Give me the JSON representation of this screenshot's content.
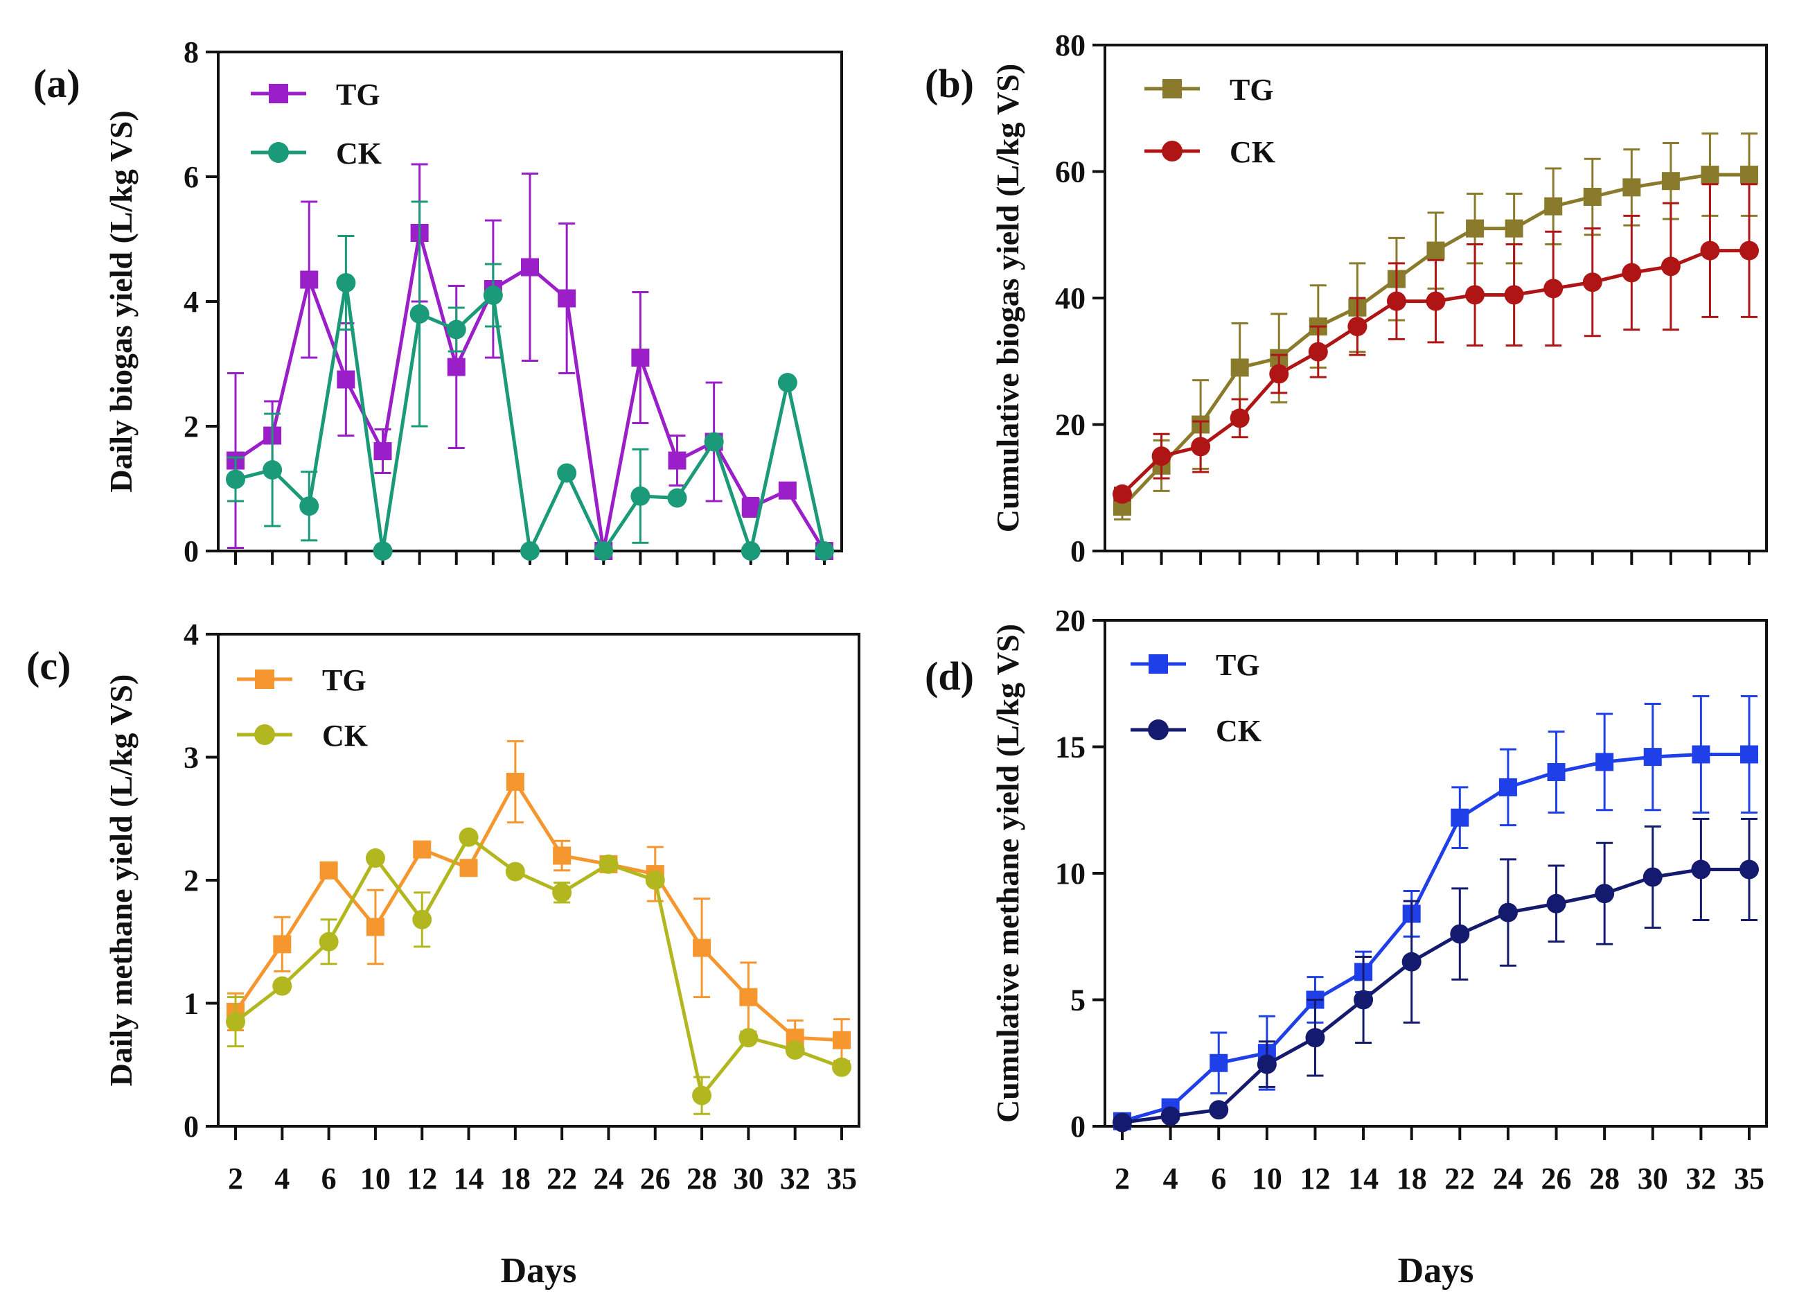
{
  "chart_data": [
    {
      "panel": "(a)",
      "type": "line",
      "ylabel": "Daily biogas yield (L/kg VS)",
      "xlabel": "",
      "ylim": [
        0,
        8
      ],
      "yticks": [
        0,
        2,
        4,
        6,
        8
      ],
      "x": [
        2,
        3,
        4,
        5,
        6,
        7,
        8,
        9,
        10,
        11,
        12,
        13,
        14,
        15,
        16,
        17,
        18
      ],
      "xtick_labels": [],
      "series": [
        {
          "name": "TG",
          "marker": "square",
          "color": "#9b1fc8",
          "values": [
            1.45,
            1.85,
            4.35,
            2.75,
            1.6,
            5.1,
            2.95,
            4.2,
            4.55,
            4.05,
            0.0,
            3.1,
            1.45,
            1.75,
            0.7,
            0.97,
            0.0
          ],
          "err": [
            1.4,
            0.55,
            1.25,
            0.9,
            0.35,
            1.1,
            1.3,
            1.1,
            1.5,
            1.2,
            0.0,
            1.05,
            0.4,
            0.95,
            0.15,
            0.1,
            0.0
          ]
        },
        {
          "name": "CK",
          "marker": "circle",
          "color": "#1a9a78",
          "values": [
            1.15,
            1.3,
            0.72,
            4.3,
            0.0,
            3.8,
            3.55,
            4.1,
            0.0,
            1.25,
            0.0,
            0.88,
            0.85,
            1.75,
            0.0,
            2.7,
            0.0
          ],
          "err": [
            0.35,
            0.9,
            0.55,
            0.75,
            0.0,
            1.8,
            0.35,
            0.5,
            0.0,
            0.0,
            0.0,
            0.75,
            0.0,
            0.0,
            0.0,
            0.0,
            0.0
          ]
        }
      ]
    },
    {
      "panel": "(b)",
      "type": "line",
      "ylabel": "Cumulative biogas yield (L/kg VS)",
      "xlabel": "",
      "ylim": [
        0,
        80
      ],
      "yticks": [
        0,
        20,
        40,
        60,
        80
      ],
      "x": [
        2,
        3,
        4,
        5,
        6,
        7,
        8,
        9,
        10,
        11,
        12,
        13,
        14,
        15,
        16,
        17,
        18
      ],
      "xtick_labels": [],
      "series": [
        {
          "name": "TG",
          "marker": "square",
          "color": "#8a7b2c",
          "values": [
            7,
            13.5,
            20,
            29,
            30.5,
            35.5,
            38.5,
            43,
            47.5,
            51,
            51,
            54.5,
            56,
            57.5,
            58.5,
            59.5,
            59.5
          ],
          "err": [
            2,
            4,
            7,
            7,
            7,
            6.5,
            7,
            6.5,
            6,
            5.5,
            5.5,
            6,
            6,
            6,
            6,
            6.5,
            6.5
          ]
        },
        {
          "name": "CK",
          "marker": "circle",
          "color": "#b01515",
          "values": [
            9,
            15,
            16.5,
            21,
            28,
            31.5,
            35.5,
            39.5,
            39.5,
            40.5,
            40.5,
            41.5,
            42.5,
            44,
            45,
            47.5,
            47.5
          ],
          "err": [
            1,
            3.5,
            4,
            3,
            3,
            4,
            4.5,
            6,
            6.5,
            8,
            8,
            9,
            8.5,
            9,
            10,
            10.5,
            10.5
          ]
        }
      ]
    },
    {
      "panel": "(c)",
      "type": "line",
      "ylabel": "Daily methane yield (L/kg VS)",
      "xlabel": "Days",
      "ylim": [
        0,
        4
      ],
      "yticks": [
        0,
        1,
        2,
        3,
        4
      ],
      "x": [
        2,
        4,
        6,
        10,
        12,
        14,
        18,
        22,
        24,
        26,
        28,
        30,
        32,
        35
      ],
      "xtick_labels": [
        "2",
        "4",
        "6",
        "10",
        "12",
        "14",
        "18",
        "22",
        "24",
        "26",
        "28",
        "30",
        "32",
        "35"
      ],
      "series": [
        {
          "name": "TG",
          "marker": "square",
          "color": "#f5962e",
          "values": [
            0.93,
            1.48,
            2.08,
            1.62,
            2.25,
            2.1,
            2.8,
            2.2,
            2.13,
            2.05,
            1.45,
            1.05,
            0.72,
            0.7
          ],
          "err": [
            0.15,
            0.22,
            0.0,
            0.3,
            0.0,
            0.0,
            0.33,
            0.12,
            0.0,
            0.22,
            0.4,
            0.28,
            0.14,
            0.17
          ]
        },
        {
          "name": "CK",
          "marker": "circle",
          "color": "#b3b71f",
          "values": [
            0.85,
            1.14,
            1.5,
            2.18,
            1.68,
            2.35,
            2.07,
            1.9,
            2.13,
            2.0,
            0.25,
            0.72,
            0.62,
            0.48
          ],
          "err": [
            0.2,
            0.0,
            0.18,
            0.0,
            0.22,
            0.0,
            0.0,
            0.08,
            0.0,
            0.0,
            0.15,
            0.0,
            0.0,
            0.0
          ]
        }
      ]
    },
    {
      "panel": "(d)",
      "type": "line",
      "ylabel": "Cumulative methane yield (L/kg VS)",
      "xlabel": "Days",
      "ylim": [
        0,
        20
      ],
      "yticks": [
        0,
        5,
        10,
        15,
        20
      ],
      "x": [
        2,
        4,
        6,
        10,
        12,
        14,
        18,
        22,
        24,
        26,
        28,
        30,
        32,
        35
      ],
      "xtick_labels": [
        "2",
        "4",
        "6",
        "10",
        "12",
        "14",
        "18",
        "22",
        "24",
        "26",
        "28",
        "30",
        "32",
        "35"
      ],
      "series": [
        {
          "name": "TG",
          "marker": "square",
          "color": "#1f3fe8",
          "values": [
            0.2,
            0.75,
            2.5,
            2.9,
            5.0,
            6.1,
            8.4,
            12.2,
            13.4,
            14.0,
            14.4,
            14.6,
            14.7,
            14.7
          ],
          "err": [
            0.0,
            0.0,
            1.2,
            1.45,
            0.9,
            0.8,
            0.9,
            1.2,
            1.5,
            1.6,
            1.9,
            2.1,
            2.3,
            2.3
          ]
        },
        {
          "name": "CK",
          "marker": "circle",
          "color": "#141a6e",
          "values": [
            0.15,
            0.4,
            0.65,
            2.45,
            3.5,
            5.0,
            6.5,
            7.6,
            8.45,
            8.8,
            9.2,
            9.85,
            10.15,
            10.15
          ],
          "err": [
            0.0,
            0.0,
            0.0,
            0.9,
            1.5,
            1.7,
            2.4,
            1.8,
            2.1,
            1.5,
            2.0,
            2.0,
            2.0,
            2.0
          ]
        }
      ]
    }
  ]
}
